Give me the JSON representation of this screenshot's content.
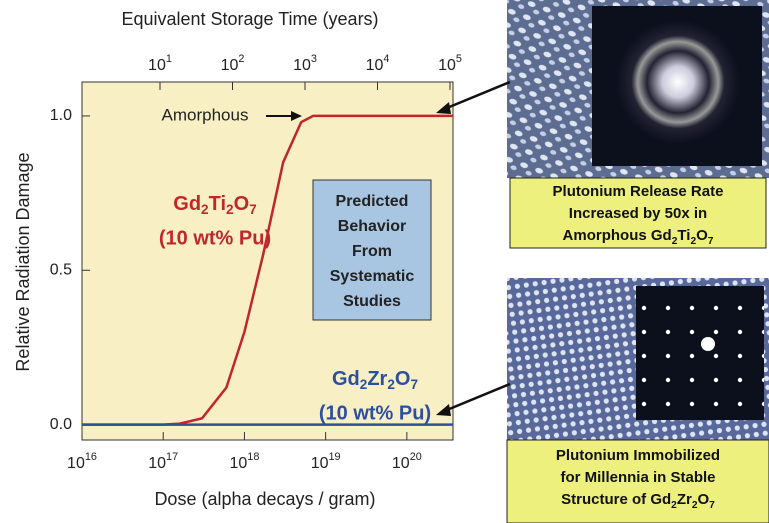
{
  "chart_data": {
    "type": "line",
    "x_label": "Dose (alpha decays / gram)",
    "y_label": "Relative Radiation Damage",
    "x2_label": "Equivalent Storage Time (years)",
    "xscale": "log",
    "xlim": [
      1e+16,
      3.7e+20
    ],
    "xticks": [
      {
        "value": 1e+16,
        "label": [
          "10",
          "16"
        ]
      },
      {
        "value": 1e+17,
        "label": [
          "10",
          "17"
        ]
      },
      {
        "value": 1e+18,
        "label": [
          "10",
          "18"
        ]
      },
      {
        "value": 1e+19,
        "label": [
          "10",
          "19"
        ]
      },
      {
        "value": 1e+20,
        "label": [
          "10",
          "20"
        ]
      }
    ],
    "x2lim": [
      0.84,
      110000
    ],
    "x2ticks": [
      {
        "value": 10,
        "label": [
          "10",
          "1"
        ]
      },
      {
        "value": 100,
        "label": [
          "10",
          "2"
        ]
      },
      {
        "value": 1000,
        "label": [
          "10",
          "3"
        ]
      },
      {
        "value": 10000,
        "label": [
          "10",
          "4"
        ]
      },
      {
        "value": 100000,
        "label": [
          "10",
          "5"
        ]
      }
    ],
    "ylim": [
      -0.05,
      1.11
    ],
    "yticks": [
      {
        "value": 0,
        "label": "0.0"
      },
      0.5,
      {
        "value": 1,
        "label": "1.0"
      }
    ],
    "amorphous_label": "Amorphous",
    "box_text": [
      "Predicted",
      "Behavior",
      "From",
      "Systematic",
      "Studies"
    ],
    "series": [
      {
        "name": [
          "Gd",
          "2",
          "Ti",
          "2",
          "O",
          "7"
        ],
        "note": "(10 wt% Pu)",
        "color": "#c0272d",
        "x": [
          1e+16,
          1e+17,
          1.6e+17,
          3e+17,
          6e+17,
          1e+18,
          1.7e+18,
          3e+18,
          5e+18,
          7e+18,
          1e+19,
          1e+20,
          3.7e+20
        ],
        "values": [
          0,
          0,
          0.003,
          0.02,
          0.12,
          0.3,
          0.55,
          0.85,
          0.98,
          1.0,
          1.0,
          1.0,
          1.0
        ]
      },
      {
        "name": [
          "Gd",
          "2",
          "Zr",
          "2",
          "O",
          "7"
        ],
        "note": "(10 wt% Pu)",
        "color": "#2c4fa0",
        "x": [
          1e+16,
          3.7e+20
        ],
        "values": [
          0,
          0
        ]
      }
    ]
  },
  "panels": [
    {
      "caption": [
        [
          "Plutonium Release Rate"
        ],
        [
          "Increased by 50x in"
        ],
        [
          "Amorphous Gd",
          "2",
          "Ti",
          "2",
          "O",
          "7"
        ]
      ]
    },
    {
      "caption": [
        [
          "Plutonium Immobilized"
        ],
        [
          "for Millennia in Stable"
        ],
        [
          "Structure of Gd",
          "2",
          "Zr",
          "2",
          "O",
          "7"
        ]
      ]
    }
  ]
}
